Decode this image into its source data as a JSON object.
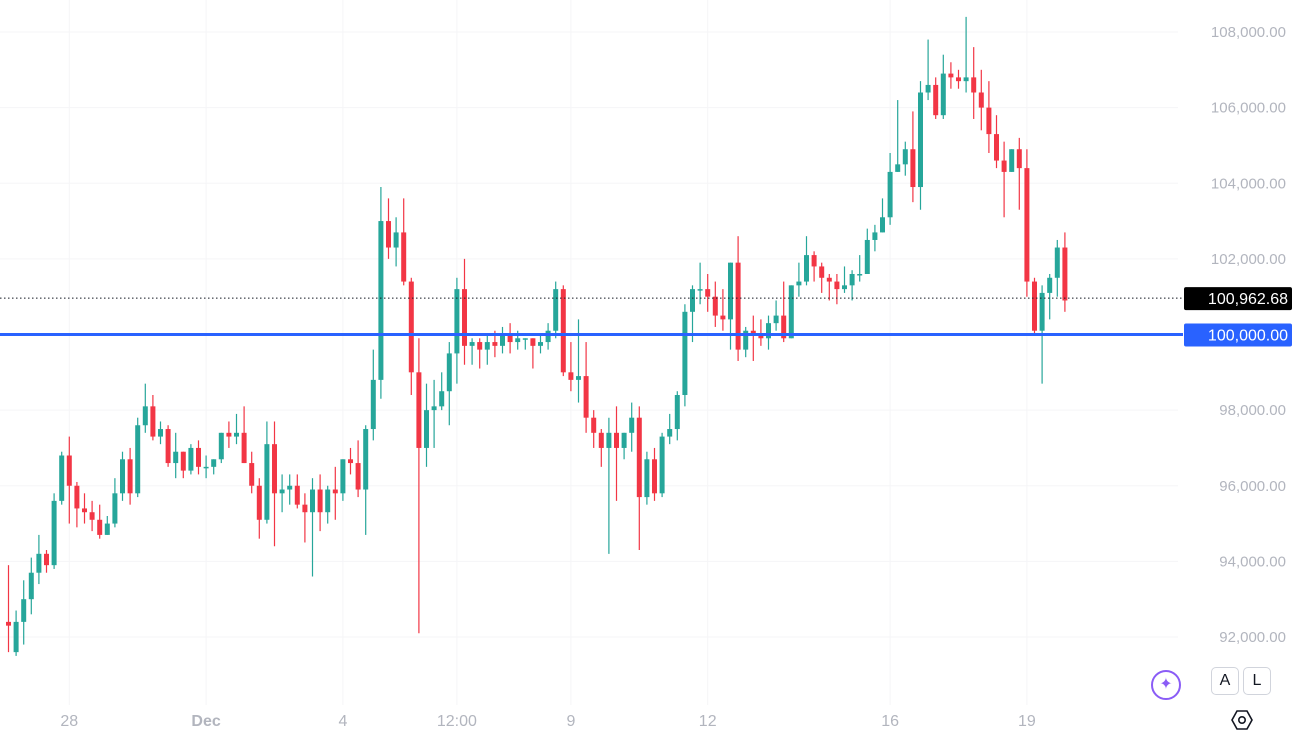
{
  "chart_data": {
    "type": "candlestick",
    "title": "",
    "ylim": [
      90900,
      108800
    ],
    "y_ticks": [
      "108,000.00",
      "106,000.00",
      "104,000.00",
      "102,000.00",
      "98,000.00",
      "96,000.00",
      "94,000.00",
      "92,000.00"
    ],
    "y_tick_values": [
      108000,
      106000,
      104000,
      102000,
      98000,
      96000,
      94000,
      92000
    ],
    "x_ticks": [
      {
        "label": "28",
        "index": 8,
        "bold": false
      },
      {
        "label": "Dec",
        "index": 26,
        "bold": true
      },
      {
        "label": "4",
        "index": 44,
        "bold": false
      },
      {
        "label": "12:00",
        "index": 59,
        "bold": false
      },
      {
        "label": "9",
        "index": 74,
        "bold": false
      },
      {
        "label": "12",
        "index": 92,
        "bold": false
      },
      {
        "label": "16",
        "index": 116,
        "bold": false
      },
      {
        "label": "19",
        "index": 134,
        "bold": false
      }
    ],
    "candles": [
      [
        92400,
        92300,
        93900,
        91600
      ],
      [
        91600,
        92400,
        92700,
        91500
      ],
      [
        92400,
        93000,
        93500,
        91800
      ],
      [
        93000,
        93700,
        94100,
        92600
      ],
      [
        93700,
        94200,
        94700,
        93400
      ],
      [
        94200,
        93900,
        94300,
        93700
      ],
      [
        93900,
        95600,
        95800,
        93800
      ],
      [
        95600,
        96800,
        96900,
        95500
      ],
      [
        96800,
        96000,
        97300,
        95000
      ],
      [
        96000,
        95400,
        96100,
        94900
      ],
      [
        95400,
        95300,
        95800,
        95000
      ],
      [
        95300,
        95100,
        95600,
        94800
      ],
      [
        95100,
        94700,
        95500,
        94600
      ],
      [
        94700,
        95000,
        95200,
        94700
      ],
      [
        95000,
        95800,
        96200,
        94900
      ],
      [
        95800,
        96700,
        96900,
        95600
      ],
      [
        96700,
        95800,
        97000,
        95500
      ],
      [
        95800,
        97600,
        97800,
        95700
      ],
      [
        97600,
        98100,
        98700,
        97400
      ],
      [
        98100,
        97300,
        98400,
        97200
      ],
      [
        97300,
        97500,
        97700,
        97100
      ],
      [
        97500,
        96600,
        97600,
        96500
      ],
      [
        96600,
        96900,
        97400,
        96200
      ],
      [
        96900,
        96400,
        96900,
        96200
      ],
      [
        96400,
        97000,
        97100,
        96300
      ],
      [
        97000,
        96500,
        97200,
        96300
      ],
      [
        96500,
        96500,
        96800,
        96200
      ],
      [
        96500,
        96700,
        96700,
        96300
      ],
      [
        96700,
        97400,
        97400,
        96600
      ],
      [
        97400,
        97300,
        97700,
        97000
      ],
      [
        97300,
        97400,
        97900,
        97100
      ],
      [
        97400,
        96600,
        98100,
        96600
      ],
      [
        96600,
        96000,
        96900,
        95800
      ],
      [
        96000,
        95100,
        96200,
        94600
      ],
      [
        95100,
        97100,
        97700,
        95000
      ],
      [
        97100,
        95800,
        97700,
        94400
      ],
      [
        95800,
        95900,
        96300,
        95300
      ],
      [
        95900,
        96000,
        96300,
        95500
      ],
      [
        96000,
        95500,
        96300,
        95400
      ],
      [
        95500,
        95300,
        95800,
        94500
      ],
      [
        95300,
        95900,
        96200,
        93600
      ],
      [
        95900,
        95300,
        96300,
        94800
      ],
      [
        95300,
        95900,
        96000,
        95000
      ],
      [
        95900,
        95800,
        96500,
        95100
      ],
      [
        95800,
        96700,
        96700,
        95600
      ],
      [
        96700,
        96600,
        97000,
        96300
      ],
      [
        96600,
        95900,
        97200,
        95700
      ],
      [
        95900,
        97500,
        97600,
        94700
      ],
      [
        97500,
        98800,
        99600,
        97200
      ],
      [
        98800,
        103000,
        103900,
        98300
      ],
      [
        103000,
        102300,
        103600,
        102000
      ],
      [
        102300,
        102700,
        103100,
        101800
      ],
      [
        102700,
        101400,
        103600,
        101300
      ],
      [
        101400,
        99000,
        101500,
        98400
      ],
      [
        99000,
        97000,
        99900,
        92100
      ],
      [
        97000,
        98000,
        98700,
        96500
      ],
      [
        98000,
        98100,
        98800,
        97000
      ],
      [
        98100,
        98500,
        99000,
        98000
      ],
      [
        98500,
        99500,
        99800,
        97600
      ],
      [
        99500,
        101200,
        101500,
        98700
      ],
      [
        101200,
        99700,
        102000,
        99200
      ],
      [
        99700,
        99800,
        99900,
        99200
      ],
      [
        99800,
        99600,
        99900,
        99100
      ],
      [
        99600,
        99800,
        100000,
        99200
      ],
      [
        99800,
        99700,
        100100,
        99400
      ],
      [
        99700,
        100000,
        100200,
        99500
      ],
      [
        100000,
        99800,
        100300,
        99500
      ],
      [
        99800,
        99900,
        100100,
        99600
      ],
      [
        99900,
        99900,
        99900,
        99600
      ],
      [
        99900,
        99700,
        99900,
        99100
      ],
      [
        99700,
        99800,
        100000,
        99500
      ],
      [
        99800,
        100100,
        100300,
        99600
      ],
      [
        100100,
        101200,
        101400,
        99900
      ],
      [
        101200,
        99000,
        101300,
        98900
      ],
      [
        99000,
        98800,
        99800,
        98500
      ],
      [
        98800,
        98900,
        100400,
        98200
      ],
      [
        98900,
        97800,
        99800,
        97400
      ],
      [
        97800,
        97400,
        98000,
        97000
      ],
      [
        97400,
        97000,
        97500,
        96500
      ],
      [
        97000,
        97400,
        97800,
        94200
      ],
      [
        97400,
        97000,
        98100,
        95600
      ],
      [
        97000,
        97400,
        97400,
        96700
      ],
      [
        97400,
        97800,
        98200,
        96900
      ],
      [
        97800,
        95700,
        98100,
        94300
      ],
      [
        95700,
        96700,
        96900,
        95500
      ],
      [
        96700,
        95800,
        97000,
        95600
      ],
      [
        95800,
        97300,
        97400,
        95700
      ],
      [
        97300,
        97500,
        97900,
        97100
      ],
      [
        97500,
        98400,
        98500,
        97200
      ],
      [
        98400,
        100600,
        100800,
        98100
      ],
      [
        100600,
        101200,
        101300,
        99800
      ],
      [
        101200,
        101200,
        101900,
        100800
      ],
      [
        101200,
        101000,
        101600,
        100600
      ],
      [
        101000,
        100500,
        101400,
        100200
      ],
      [
        100500,
        100400,
        101200,
        100100
      ],
      [
        100400,
        101900,
        101900,
        99600
      ],
      [
        101900,
        99600,
        102600,
        99300
      ],
      [
        99600,
        100100,
        100200,
        99400
      ],
      [
        100100,
        100000,
        100500,
        99300
      ],
      [
        100000,
        99900,
        100400,
        99700
      ],
      [
        99900,
        100300,
        100500,
        99600
      ],
      [
        100300,
        100500,
        100900,
        100100
      ],
      [
        100500,
        99900,
        101400,
        99800
      ],
      [
        99900,
        101300,
        101300,
        99900
      ],
      [
        101300,
        101400,
        101900,
        101000
      ],
      [
        101400,
        102100,
        102600,
        101300
      ],
      [
        102100,
        101800,
        102200,
        101400
      ],
      [
        101800,
        101500,
        101900,
        101100
      ],
      [
        101500,
        101400,
        101600,
        100900
      ],
      [
        101400,
        101200,
        101600,
        100800
      ],
      [
        101200,
        101300,
        101800,
        101100
      ],
      [
        101300,
        101600,
        101700,
        100900
      ],
      [
        101600,
        101600,
        102100,
        101400
      ],
      [
        101600,
        102500,
        102800,
        101600
      ],
      [
        102500,
        102700,
        102900,
        102200
      ],
      [
        102700,
        103100,
        103600,
        102700
      ],
      [
        103100,
        104300,
        104800,
        102900
      ],
      [
        104300,
        104500,
        106200,
        104300
      ],
      [
        104500,
        104900,
        105100,
        104200
      ],
      [
        104900,
        103900,
        105900,
        103500
      ],
      [
        103900,
        106400,
        106700,
        103300
      ],
      [
        106400,
        106600,
        107800,
        106200
      ],
      [
        106600,
        105800,
        106800,
        105700
      ],
      [
        105800,
        106900,
        107400,
        105700
      ],
      [
        106900,
        106800,
        107200,
        106500
      ],
      [
        106800,
        106700,
        107000,
        106500
      ],
      [
        106700,
        106800,
        108400,
        106400
      ],
      [
        106800,
        106400,
        107600,
        105700
      ],
      [
        106400,
        106000,
        107000,
        105400
      ],
      [
        106000,
        105300,
        106700,
        104800
      ],
      [
        105300,
        104600,
        105800,
        104400
      ],
      [
        104600,
        104300,
        105100,
        103100
      ],
      [
        104300,
        104900,
        104900,
        104300
      ],
      [
        104900,
        104400,
        105200,
        103300
      ],
      [
        104400,
        101400,
        104900,
        101000
      ],
      [
        101400,
        100100,
        101500,
        100000
      ],
      [
        100100,
        101100,
        101300,
        98700
      ],
      [
        101100,
        101500,
        101600,
        100400
      ],
      [
        101500,
        102300,
        102500,
        101000
      ],
      [
        102300,
        100900,
        102700,
        100600
      ]
    ],
    "reference_lines": [
      {
        "price": 100962.68,
        "label": "100,962.68",
        "style": "dotted",
        "label_bg": "#000000"
      },
      {
        "price": 100000,
        "label": "100,000.00",
        "style": "solid",
        "label_bg": "#2962ff"
      }
    ],
    "colors": {
      "up": "#26a69a",
      "down": "#f23645",
      "grid": "#f5f5f7",
      "axis_text": "#b2b5be",
      "accent": "#2962ff",
      "ai": "#8a5cf6"
    }
  },
  "controls": {
    "auto_label": "A",
    "log_label": "L",
    "ai_icon_glyph": "✦"
  }
}
